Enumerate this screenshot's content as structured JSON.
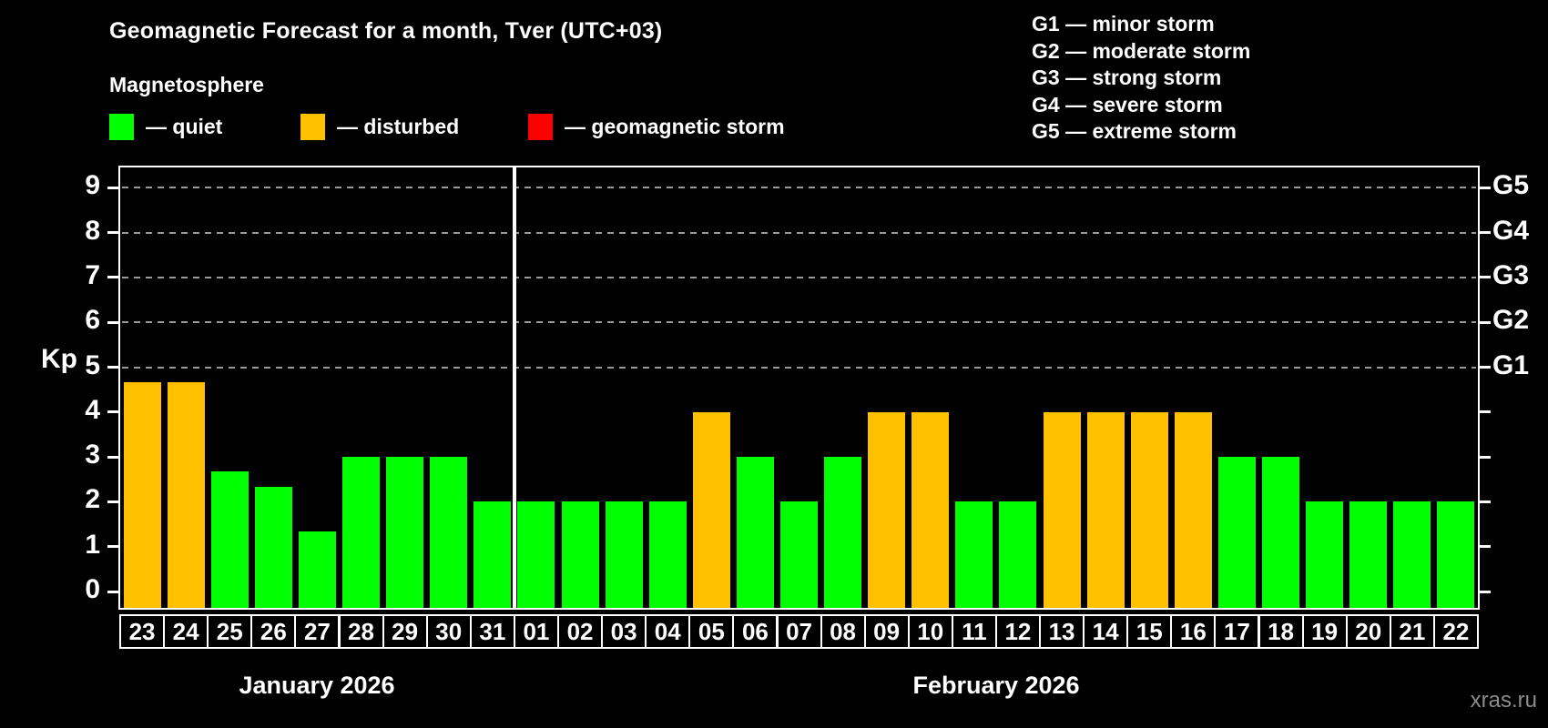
{
  "header": {
    "title": "Geomagnetic Forecast for a month, Tver (UTC+03)",
    "subtitle": "Magnetosphere"
  },
  "legend": {
    "items": [
      {
        "name": "quiet",
        "label": "— quiet",
        "color": "#00ff00"
      },
      {
        "name": "disturbed",
        "label": "— disturbed",
        "color": "#ffc000"
      },
      {
        "name": "storm",
        "label": "— geomagnetic storm",
        "color": "#ff0000"
      }
    ]
  },
  "g_scale_legend": {
    "items": [
      "G1 — minor storm",
      "G2 — moderate storm",
      "G3 — strong storm",
      "G4 — severe storm",
      "G5 — extreme storm"
    ]
  },
  "chart_data": {
    "type": "bar",
    "title": "Geomagnetic Forecast for a month, Tver (UTC+03)",
    "ylabel": "Kp",
    "ylim": [
      -0.37,
      9.45
    ],
    "grid": "dashed horizontal at Kp 5-9 only",
    "gridlines_at": [
      5,
      6,
      7,
      8,
      9
    ],
    "y_ticks": [
      0,
      1,
      2,
      3,
      4,
      5,
      6,
      7,
      8,
      9
    ],
    "right_axis_labels": [
      {
        "kp": 5,
        "label": "G1"
      },
      {
        "kp": 6,
        "label": "G2"
      },
      {
        "kp": 7,
        "label": "G3"
      },
      {
        "kp": 8,
        "label": "G4"
      },
      {
        "kp": 9,
        "label": "G5"
      }
    ],
    "months": [
      {
        "label": "January 2026",
        "days": 9
      },
      {
        "label": "February 2026",
        "days": 22
      }
    ],
    "categories": [
      "23",
      "24",
      "25",
      "26",
      "27",
      "28",
      "29",
      "30",
      "31",
      "01",
      "02",
      "03",
      "04",
      "05",
      "06",
      "07",
      "08",
      "09",
      "10",
      "11",
      "12",
      "13",
      "14",
      "15",
      "16",
      "17",
      "18",
      "19",
      "20",
      "21",
      "22"
    ],
    "series": [
      {
        "name": "Kp forecast",
        "values": [
          4.67,
          4.67,
          2.67,
          2.33,
          1.33,
          3,
          3,
          3,
          2,
          2,
          2,
          2,
          2,
          4,
          3,
          2,
          3,
          4,
          4,
          2,
          2,
          4,
          4,
          4,
          4,
          3,
          3,
          2,
          2,
          2,
          2
        ]
      }
    ],
    "bar_status": [
      "disturbed",
      "disturbed",
      "quiet",
      "quiet",
      "quiet",
      "quiet",
      "quiet",
      "quiet",
      "quiet",
      "quiet",
      "quiet",
      "quiet",
      "quiet",
      "disturbed",
      "quiet",
      "quiet",
      "quiet",
      "disturbed",
      "disturbed",
      "quiet",
      "quiet",
      "disturbed",
      "disturbed",
      "disturbed",
      "disturbed",
      "quiet",
      "quiet",
      "quiet",
      "quiet",
      "quiet",
      "quiet"
    ],
    "status_colors": {
      "quiet": "#00ff00",
      "disturbed": "#ffc000",
      "storm": "#ff0000"
    }
  },
  "watermark": "xras.ru"
}
